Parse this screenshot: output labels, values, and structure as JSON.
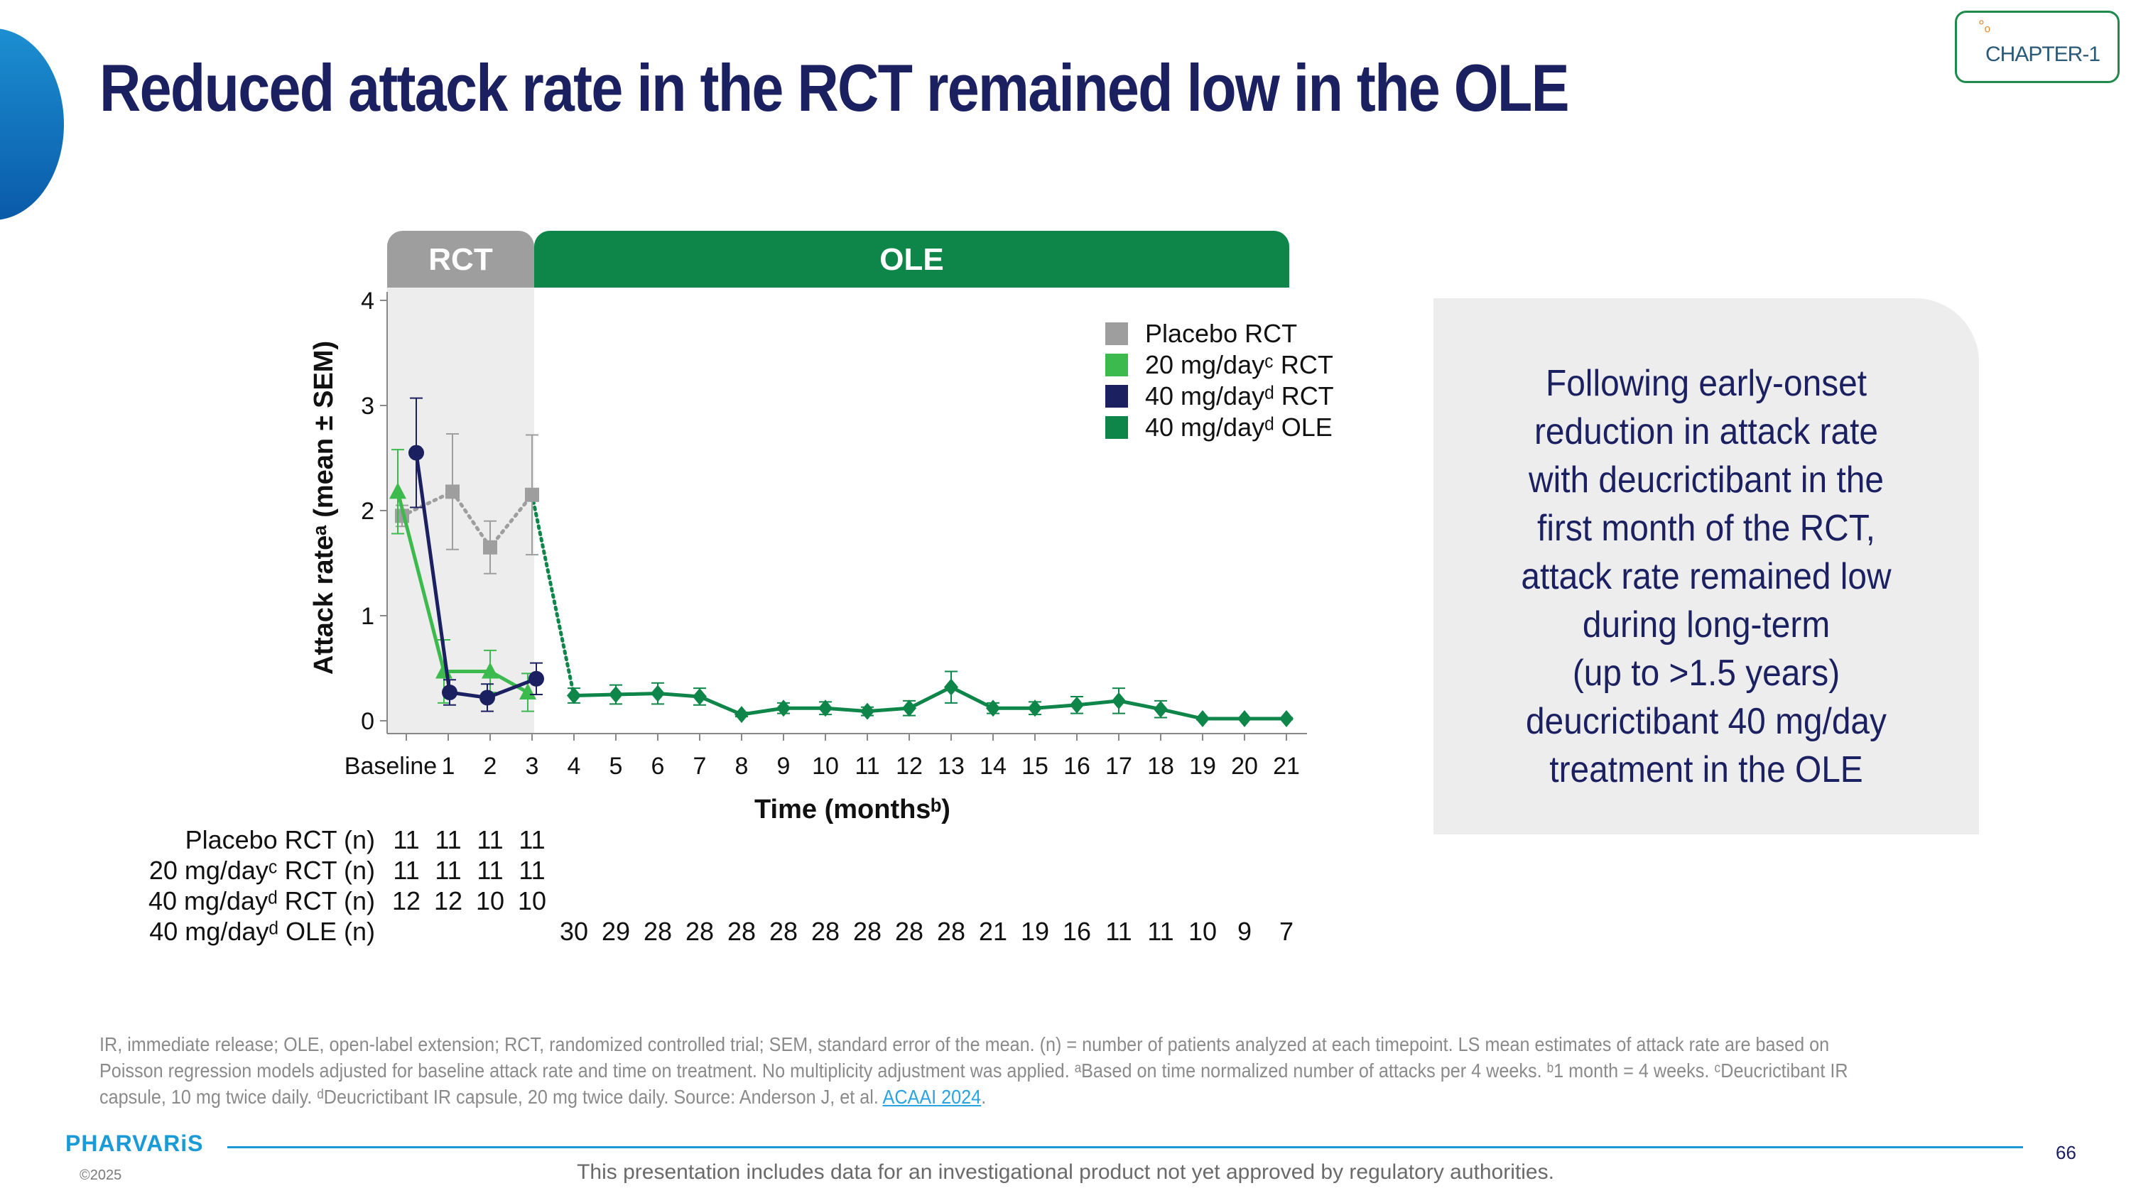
{
  "slide": {
    "title": "Reduced attack rate in the RCT remained low in the OLE",
    "logo_text": "CHAPTER-1",
    "message": "Following early-onset\nreduction in attack rate\nwith deucrictibant in the\nfirst month of the RCT,\nattack rate remained low\nduring long-term\n(up to >1.5 years)\ndeucrictibant 40 mg/day\ntreatment in the OLE",
    "footnote_pre": "IR, immediate release; OLE, open-label extension; RCT, randomized controlled trial; SEM, standard error of the mean. (n) = number of patients analyzed at each timepoint. LS mean estimates of attack rate are based on Poisson regression models adjusted for baseline attack rate and time on treatment. No multiplicity adjustment was applied. ᵃBased on time normalized number of attacks per 4 weeks. ᵇ1 month = 4 weeks. ᶜDeucrictibant IR capsule, 10 mg twice daily. ᵈDeucrictibant IR capsule, 20 mg twice daily. Source: Anderson J, et al. ",
    "footnote_link": "ACAAI 2024",
    "footnote_post": ".",
    "brand": "PHARVARiS",
    "copyright": "©2025",
    "disclaimer": "This presentation includes data for an investigational product not yet approved by regulatory authorities.",
    "page_number": "66"
  },
  "colors": {
    "navy": "#1b2060",
    "placebo": "#9e9e9e",
    "dose20": "#3dba4e",
    "dose40": "#1b2060",
    "ole": "#0e8549",
    "rct_band": "#ededed"
  },
  "chart_data": {
    "type": "line",
    "ylabel": "Attack rateᵃ (mean ± SEM)",
    "xlabel": "Time (monthsᵇ)",
    "ylim": [
      0,
      4
    ],
    "yticks": [
      0,
      1,
      2,
      3,
      4
    ],
    "x_categories": [
      "Baseline",
      "1",
      "2",
      "3",
      "4",
      "5",
      "6",
      "7",
      "8",
      "9",
      "10",
      "11",
      "12",
      "13",
      "14",
      "15",
      "16",
      "17",
      "18",
      "19",
      "20",
      "21"
    ],
    "phases": [
      {
        "label": "RCT",
        "from": "Baseline",
        "to": "3",
        "color": "#9e9e9e"
      },
      {
        "label": "OLE",
        "from": "3",
        "to": "21",
        "color": "#0e8549"
      }
    ],
    "legend_position": "top-right",
    "series": [
      {
        "name": "Placebo RCT",
        "color": "#9e9e9e",
        "marker": "square",
        "line": "dotted",
        "x": [
          "Baseline",
          "1",
          "2",
          "3"
        ],
        "y": [
          1.95,
          2.18,
          1.65,
          2.15
        ],
        "sem": [
          0.1,
          0.55,
          0.25,
          0.57
        ]
      },
      {
        "name": "20 mg/dayᶜ RCT",
        "color": "#3dba4e",
        "marker": "triangle",
        "line": "solid",
        "x": [
          "Baseline",
          "1",
          "2",
          "3"
        ],
        "y": [
          2.18,
          0.47,
          0.47,
          0.27
        ],
        "sem": [
          0.4,
          0.3,
          0.2,
          0.18
        ]
      },
      {
        "name": "40 mg/dayᵈ RCT",
        "color": "#1b2060",
        "marker": "circle",
        "line": "solid",
        "x": [
          "Baseline",
          "1",
          "2",
          "3"
        ],
        "y": [
          2.55,
          0.27,
          0.22,
          0.4
        ],
        "sem": [
          0.52,
          0.12,
          0.13,
          0.15
        ]
      },
      {
        "name": "40 mg/dayᵈ OLE",
        "color": "#0e8549",
        "marker": "diamond",
        "line": "solid",
        "x": [
          "4",
          "5",
          "6",
          "7",
          "8",
          "9",
          "10",
          "11",
          "12",
          "13",
          "14",
          "15",
          "16",
          "17",
          "18",
          "19",
          "20",
          "21"
        ],
        "y": [
          0.24,
          0.25,
          0.26,
          0.23,
          0.06,
          0.12,
          0.12,
          0.09,
          0.12,
          0.32,
          0.12,
          0.12,
          0.15,
          0.19,
          0.11,
          0.02,
          0.02,
          0.02
        ],
        "sem": [
          0.07,
          0.09,
          0.1,
          0.08,
          0.02,
          0.05,
          0.06,
          0.04,
          0.07,
          0.15,
          0.05,
          0.06,
          0.08,
          0.12,
          0.08,
          0.01,
          0.01,
          0.01
        ]
      }
    ],
    "connectors": [
      {
        "color": "#0e8549",
        "style": "dotted",
        "from": {
          "x": "3",
          "y": 2.15
        },
        "to": {
          "x": "4",
          "y": 0.24
        }
      }
    ],
    "n_table": [
      {
        "label": "Placebo RCT (n)",
        "x": [
          "Baseline",
          "1",
          "2",
          "3"
        ],
        "values": [
          "11",
          "11",
          "11",
          "11"
        ]
      },
      {
        "label": "20 mg/dayᶜ RCT (n)",
        "x": [
          "Baseline",
          "1",
          "2",
          "3"
        ],
        "values": [
          "11",
          "11",
          "11",
          "11"
        ]
      },
      {
        "label": "40 mg/dayᵈ RCT (n)",
        "x": [
          "Baseline",
          "1",
          "2",
          "3"
        ],
        "values": [
          "12",
          "12",
          "10",
          "10"
        ]
      },
      {
        "label": "40 mg/dayᵈ OLE (n)",
        "x": [
          "4",
          "5",
          "6",
          "7",
          "8",
          "9",
          "10",
          "11",
          "12",
          "13",
          "14",
          "15",
          "16",
          "17",
          "18",
          "19",
          "20",
          "21"
        ],
        "values": [
          "30",
          "29",
          "28",
          "28",
          "28",
          "28",
          "28",
          "28",
          "28",
          "28",
          "21",
          "19",
          "16",
          "11",
          "11",
          "10",
          "9",
          "7"
        ]
      }
    ]
  }
}
